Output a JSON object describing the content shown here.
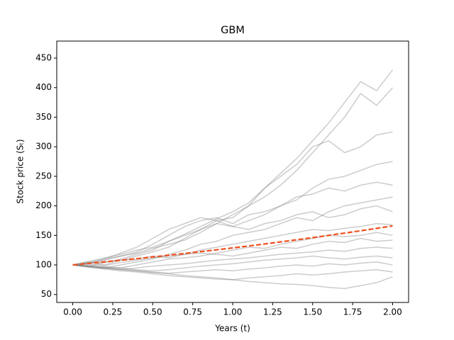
{
  "chart_data": {
    "type": "line",
    "title": "GBM",
    "x_label": "Years (t)",
    "y_label": "Stock price (Sₜ)",
    "x": [
      0,
      0.1,
      0.2,
      0.3,
      0.4,
      0.5,
      0.6,
      0.7,
      0.8,
      0.9,
      1.0,
      1.1,
      1.2,
      1.3,
      1.4,
      1.5,
      1.6,
      1.7,
      1.8,
      1.9,
      2.0
    ],
    "xlim": [
      -0.1,
      2.1
    ],
    "xticks": [
      {
        "value": 0,
        "label": "0.00"
      },
      {
        "value": 0.25,
        "label": "0.25"
      },
      {
        "value": 0.5,
        "label": "0.50"
      },
      {
        "value": 0.75,
        "label": "0.75"
      },
      {
        "value": 1,
        "label": "1.00"
      },
      {
        "value": 1.25,
        "label": "1.25"
      },
      {
        "value": 1.5,
        "label": "1.50"
      },
      {
        "value": 1.75,
        "label": "1.75"
      },
      {
        "value": 2,
        "label": "2.00"
      }
    ],
    "ylim": [
      36.5,
      478.8
    ],
    "yticks": [
      50,
      100,
      150,
      200,
      250,
      300,
      350,
      400,
      450
    ],
    "path_color": "#808080",
    "path_opacity": 0.4,
    "series": [
      {
        "values": [
          100,
          106,
          112,
          118,
          125,
          130,
          140,
          152,
          165,
          178,
          190,
          205,
          230,
          255,
          280,
          310,
          340,
          375,
          410,
          395,
          430
        ]
      },
      {
        "values": [
          100,
          103,
          110,
          115,
          120,
          128,
          135,
          142,
          155,
          170,
          185,
          200,
          215,
          235,
          260,
          290,
          320,
          350,
          390,
          370,
          400
        ]
      },
      {
        "values": [
          100,
          98,
          104,
          110,
          118,
          125,
          140,
          150,
          160,
          175,
          180,
          200,
          230,
          250,
          270,
          300,
          310,
          290,
          300,
          320,
          325
        ]
      },
      {
        "values": [
          100,
          105,
          100,
          108,
          115,
          122,
          130,
          145,
          160,
          170,
          165,
          175,
          185,
          200,
          210,
          230,
          245,
          250,
          260,
          270,
          275
        ]
      },
      {
        "values": [
          100,
          102,
          108,
          115,
          122,
          135,
          150,
          165,
          175,
          180,
          170,
          185,
          190,
          200,
          215,
          220,
          230,
          225,
          235,
          240,
          235
        ]
      },
      {
        "values": [
          100,
          97,
          95,
          100,
          105,
          110,
          118,
          125,
          135,
          140,
          150,
          155,
          160,
          170,
          180,
          175,
          190,
          200,
          205,
          210,
          215
        ]
      },
      {
        "values": [
          100,
          104,
          110,
          120,
          130,
          145,
          160,
          170,
          180,
          175,
          165,
          160,
          170,
          175,
          185,
          190,
          180,
          185,
          195,
          200,
          190
        ]
      },
      {
        "values": [
          100,
          101,
          99,
          104,
          108,
          112,
          115,
          118,
          125,
          130,
          135,
          140,
          145,
          150,
          155,
          160,
          158,
          162,
          165,
          170,
          168
        ]
      },
      {
        "values": [
          100,
          98,
          96,
          95,
          100,
          105,
          110,
          112,
          115,
          120,
          125,
          130,
          128,
          135,
          140,
          145,
          150,
          148,
          150,
          155,
          150
        ]
      },
      {
        "values": [
          100,
          103,
          105,
          108,
          110,
          115,
          112,
          118,
          120,
          118,
          115,
          120,
          125,
          130,
          128,
          135,
          140,
          138,
          145,
          140,
          142
        ]
      },
      {
        "values": [
          100,
          97,
          94,
          92,
          95,
          98,
          100,
          102,
          105,
          108,
          110,
          112,
          115,
          118,
          120,
          122,
          125,
          123,
          128,
          130,
          128
        ]
      },
      {
        "values": [
          100,
          99,
          97,
          95,
          92,
          90,
          92,
          95,
          98,
          100,
          102,
          105,
          108,
          110,
          112,
          115,
          112,
          110,
          113,
          115,
          112
        ]
      },
      {
        "values": [
          100,
          98,
          95,
          93,
          90,
          88,
          86,
          88,
          90,
          92,
          90,
          93,
          95,
          98,
          100,
          98,
          102,
          100,
          103,
          105,
          100
        ]
      },
      {
        "values": [
          100,
          96,
          93,
          90,
          88,
          85,
          82,
          80,
          78,
          76,
          75,
          78,
          80,
          82,
          85,
          83,
          85,
          88,
          90,
          92,
          88
        ]
      },
      {
        "values": [
          100,
          97,
          95,
          92,
          90,
          87,
          85,
          82,
          80,
          78,
          75,
          72,
          70,
          68,
          67,
          65,
          62,
          60,
          65,
          70,
          80
        ]
      }
    ],
    "mean": {
      "color": "#f0501e",
      "dashed": true,
      "values": [
        100,
        102.6,
        105.2,
        107.9,
        110.6,
        113.5,
        116.4,
        119.4,
        122.5,
        125.6,
        128.8,
        132.1,
        135.5,
        139.0,
        142.6,
        146.2,
        150.0,
        153.9,
        157.8,
        161.9,
        166.0
      ]
    }
  }
}
